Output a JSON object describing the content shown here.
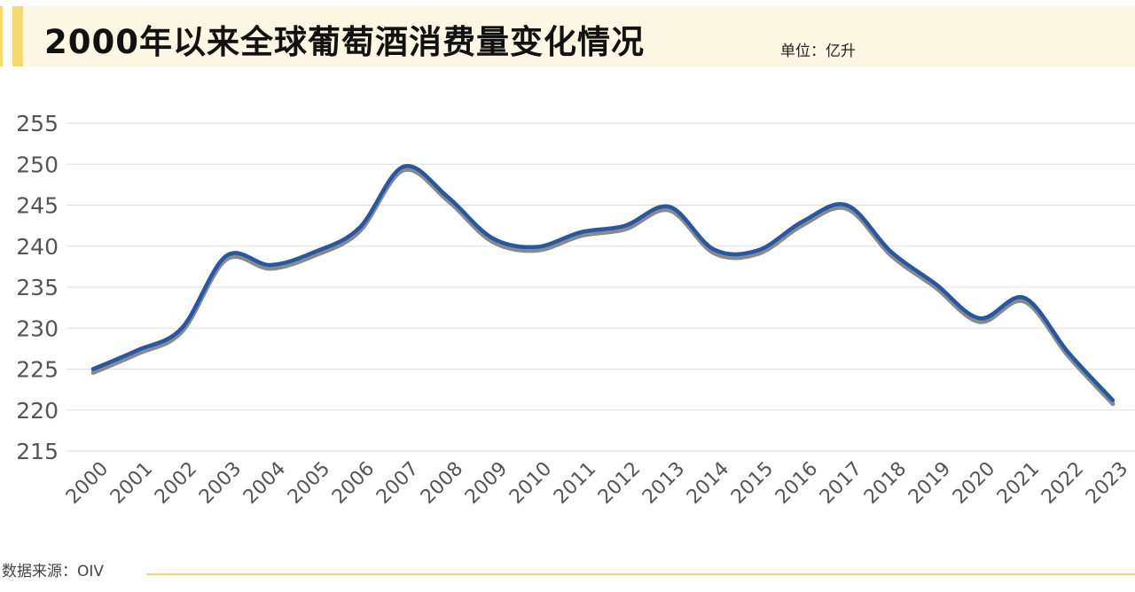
{
  "header": {
    "title": "2000年以来全球葡萄酒消费量变化情况",
    "unit": "单位：亿升"
  },
  "footer": {
    "source": "数据来源：OIV"
  },
  "colors": {
    "line": "#2557a7",
    "shadow": "#8a8a8a",
    "accent": "#f5d96b",
    "header_bg": "#fcf7e3",
    "grid": "#dddddd"
  },
  "chart_data": {
    "type": "line",
    "title": "2000年以来全球葡萄酒消费量变化情况",
    "xlabel": "",
    "ylabel": "单位：亿升",
    "ylim": [
      215,
      255
    ],
    "yticks": [
      "215",
      "220",
      "225",
      "230",
      "235",
      "240",
      "245",
      "250",
      "255"
    ],
    "categories": [
      "2000",
      "2001",
      "2002",
      "2003",
      "2004",
      "2005",
      "2006",
      "2007",
      "2008",
      "2009",
      "2010",
      "2011",
      "2012",
      "2013",
      "2014",
      "2015",
      "2016",
      "2017",
      "2018",
      "2019",
      "2020",
      "2021",
      "2022",
      "2023"
    ],
    "series": [
      {
        "name": "全球葡萄酒消费量",
        "values": [
          225.0,
          227.3,
          230.0,
          238.8,
          237.7,
          239.3,
          242.2,
          249.7,
          246.0,
          241.0,
          239.9,
          241.7,
          242.5,
          244.8,
          239.6,
          239.5,
          243.0,
          245.0,
          239.3,
          235.4,
          231.2,
          233.7,
          227.0,
          221.2
        ]
      }
    ],
    "grid": true,
    "legend": "none"
  }
}
